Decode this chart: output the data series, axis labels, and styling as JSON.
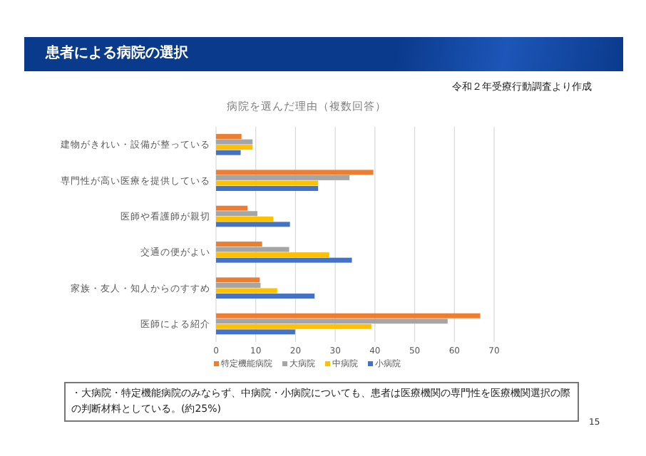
{
  "chart_data": {
    "type": "bar",
    "orientation": "horizontal",
    "title": "病院を選んだ理由（複数回答）",
    "subtitle": "患者による病院の選択",
    "annotations": [
      "令和２年受療行動調査より作成",
      "・大病院・特定機能病院のみならず、中病院・小病院についても、患者は医療機関の専門性を医療機関選択の際の判断材料としている。(約25%)",
      "15"
    ],
    "categories": [
      "建物がきれい・設備が整っている",
      "専門性が高い医療を提供している",
      "医師や看護師が親切",
      "交通の便がよい",
      "家族・友人・知人からのすすめ",
      "医師による紹介"
    ],
    "series": [
      {
        "name": "特定機能病院",
        "color": "#ed7d31",
        "values": [
          6.4,
          39.6,
          7.9,
          11.6,
          11,
          66.5
        ]
      },
      {
        "name": "大病院",
        "color": "#a5a5a5",
        "values": [
          9.2,
          33.6,
          10.4,
          18.4,
          11.2,
          58.3
        ]
      },
      {
        "name": "中病院",
        "color": "#ffc000",
        "values": [
          9.2,
          25.7,
          14.4,
          28.5,
          15.4,
          39.1
        ]
      },
      {
        "name": "小病院",
        "color": "#4472c4",
        "values": [
          6.2,
          25.7,
          18.6,
          34.2,
          24.8,
          19.9
        ]
      }
    ],
    "xlim": [
      0,
      70
    ],
    "xticks": [
      0,
      10,
      20,
      30,
      40,
      50,
      60,
      70
    ],
    "grid": "x",
    "legend": "bottom"
  }
}
